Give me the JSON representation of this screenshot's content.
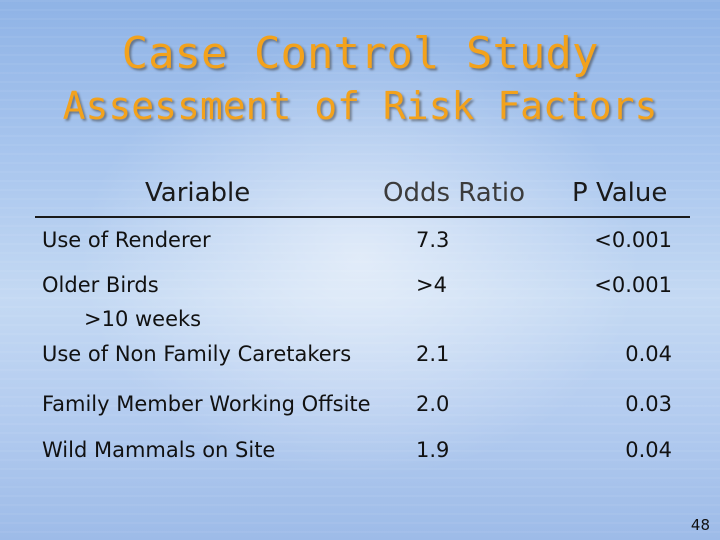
{
  "slide": {
    "title_line1": "Case Control Study",
    "title_line2": "Assessment of Risk Factors",
    "page_number": "48"
  },
  "table": {
    "headers": {
      "variable": "Variable",
      "odds_ratio": "Odds Ratio",
      "p_value": "P Value"
    },
    "rows": [
      {
        "variable": "Use of Renderer",
        "sub": "",
        "odds_ratio": "7.3",
        "p_value": "<0.001"
      },
      {
        "variable": "Older Birds",
        "sub": ">10 weeks",
        "odds_ratio": ">4",
        "p_value": "<0.001"
      },
      {
        "variable": "Use of Non Family Caretakers",
        "sub": "",
        "odds_ratio": "2.1",
        "p_value": "0.04"
      },
      {
        "variable": "Family Member Working Offsite",
        "sub": "",
        "odds_ratio": "2.0",
        "p_value": "0.03"
      },
      {
        "variable": "Wild Mammals on Site",
        "sub": "",
        "odds_ratio": "1.9",
        "p_value": "0.04"
      }
    ]
  },
  "colors": {
    "title": "#f3a21c",
    "background": "#a9c6ee",
    "text": "#111111"
  }
}
